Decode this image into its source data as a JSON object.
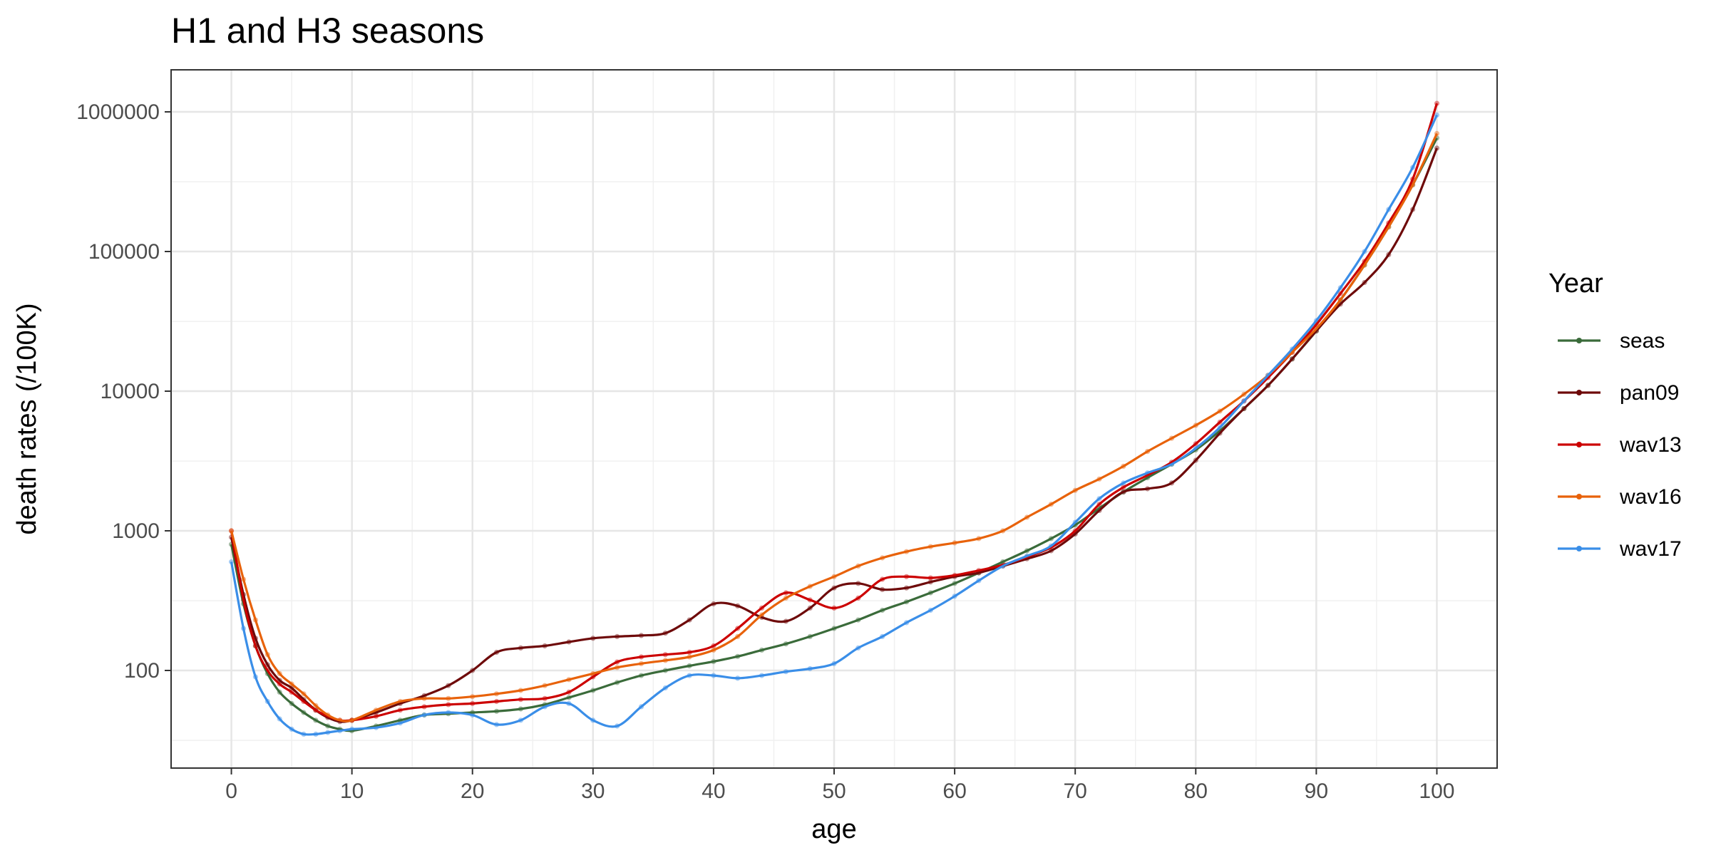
{
  "chart_data": {
    "type": "line",
    "title": "H1 and H3 seasons",
    "xlabel": "age",
    "ylabel": "death rates (/100K)",
    "xlim": [
      -5,
      105
    ],
    "ylim": [
      20,
      2000000
    ],
    "y_scale": "log10",
    "x_ticks": [
      0,
      10,
      20,
      30,
      40,
      50,
      60,
      70,
      80,
      90,
      100
    ],
    "x_tick_labels": [
      "0",
      "10",
      "20",
      "30",
      "40",
      "50",
      "60",
      "70",
      "80",
      "90",
      "100"
    ],
    "y_ticks": [
      100,
      1000,
      10000,
      100000,
      1000000
    ],
    "y_tick_labels": [
      "100",
      "1000",
      "10000",
      "100000",
      "1000000"
    ],
    "grid": true,
    "legend_title": "Year",
    "legend_position": "right",
    "series": [
      {
        "name": "seas",
        "color": "#3a6b3a",
        "x": [
          0,
          1,
          2,
          3,
          4,
          5,
          6,
          7,
          8,
          9,
          10,
          12,
          14,
          16,
          18,
          20,
          22,
          24,
          26,
          28,
          30,
          32,
          34,
          36,
          38,
          40,
          42,
          44,
          46,
          48,
          50,
          52,
          54,
          56,
          58,
          60,
          62,
          64,
          66,
          68,
          70,
          72,
          74,
          76,
          78,
          80,
          82,
          84,
          86,
          88,
          90,
          92,
          94,
          96,
          98,
          100
        ],
        "y": [
          800,
          300,
          150,
          95,
          70,
          58,
          50,
          44,
          40,
          38,
          37,
          40,
          44,
          48,
          49,
          50,
          51,
          53,
          57,
          64,
          72,
          82,
          92,
          100,
          108,
          116,
          126,
          140,
          155,
          175,
          200,
          230,
          270,
          310,
          360,
          420,
          500,
          600,
          720,
          880,
          1100,
          1450,
          1900,
          2400,
          3000,
          3800,
          5200,
          7500,
          11000,
          17000,
          27000,
          45000,
          80000,
          150000,
          300000,
          650000
        ]
      },
      {
        "name": "pan09",
        "color": "#6e0a0a",
        "x": [
          0,
          1,
          2,
          3,
          4,
          5,
          6,
          7,
          8,
          9,
          10,
          12,
          14,
          16,
          18,
          20,
          22,
          24,
          26,
          28,
          30,
          32,
          34,
          36,
          38,
          40,
          42,
          44,
          46,
          48,
          50,
          52,
          54,
          56,
          58,
          60,
          62,
          64,
          66,
          68,
          70,
          72,
          74,
          76,
          78,
          80,
          82,
          84,
          86,
          88,
          90,
          92,
          94,
          96,
          98,
          100
        ],
        "y": [
          900,
          350,
          170,
          110,
          85,
          75,
          62,
          52,
          46,
          43,
          44,
          50,
          58,
          66,
          78,
          100,
          135,
          145,
          150,
          160,
          170,
          175,
          178,
          185,
          230,
          300,
          290,
          240,
          225,
          280,
          390,
          420,
          380,
          390,
          430,
          470,
          500,
          560,
          630,
          720,
          950,
          1400,
          1900,
          2000,
          2200,
          3200,
          5000,
          7500,
          11000,
          17000,
          27000,
          42000,
          60000,
          95000,
          200000,
          550000
        ]
      },
      {
        "name": "wav13",
        "color": "#cc0000",
        "x": [
          0,
          1,
          2,
          3,
          4,
          5,
          6,
          7,
          8,
          9,
          10,
          12,
          14,
          16,
          18,
          20,
          22,
          24,
          26,
          28,
          30,
          32,
          34,
          36,
          38,
          40,
          42,
          44,
          46,
          48,
          50,
          52,
          54,
          56,
          58,
          60,
          62,
          64,
          66,
          68,
          70,
          72,
          74,
          76,
          78,
          80,
          82,
          84,
          86,
          88,
          90,
          92,
          94,
          96,
          98,
          100
        ],
        "y": [
          1000,
          320,
          150,
          100,
          80,
          70,
          60,
          52,
          47,
          44,
          44,
          47,
          52,
          55,
          57,
          58,
          60,
          62,
          63,
          70,
          90,
          115,
          125,
          130,
          135,
          150,
          200,
          280,
          360,
          320,
          280,
          330,
          450,
          470,
          460,
          480,
          520,
          570,
          650,
          760,
          1000,
          1550,
          2050,
          2500,
          3100,
          4200,
          6000,
          8500,
          12500,
          19000,
          30000,
          50000,
          85000,
          160000,
          330000,
          1150000
        ]
      },
      {
        "name": "wav16",
        "color": "#e8620a",
        "x": [
          0,
          1,
          2,
          3,
          4,
          5,
          6,
          7,
          8,
          9,
          10,
          12,
          14,
          16,
          18,
          20,
          22,
          24,
          26,
          28,
          30,
          32,
          34,
          36,
          38,
          40,
          42,
          44,
          46,
          48,
          50,
          52,
          54,
          56,
          58,
          60,
          62,
          64,
          66,
          68,
          70,
          72,
          74,
          76,
          78,
          80,
          82,
          84,
          86,
          88,
          90,
          92,
          94,
          96,
          98,
          100
        ],
        "y": [
          1000,
          450,
          230,
          130,
          95,
          80,
          68,
          56,
          48,
          44,
          44,
          52,
          60,
          63,
          63,
          65,
          68,
          72,
          78,
          86,
          95,
          105,
          112,
          118,
          125,
          140,
          175,
          250,
          330,
          400,
          470,
          560,
          640,
          710,
          770,
          820,
          880,
          1000,
          1250,
          1550,
          1950,
          2350,
          2900,
          3700,
          4600,
          5700,
          7200,
          9500,
          13000,
          19000,
          28000,
          45000,
          80000,
          150000,
          300000,
          700000
        ]
      },
      {
        "name": "wav17",
        "color": "#3a8ee8",
        "x": [
          0,
          1,
          2,
          3,
          4,
          5,
          6,
          7,
          8,
          9,
          10,
          12,
          14,
          16,
          18,
          20,
          22,
          24,
          26,
          28,
          30,
          32,
          34,
          36,
          38,
          40,
          42,
          44,
          46,
          48,
          50,
          52,
          54,
          56,
          58,
          60,
          62,
          64,
          66,
          68,
          70,
          72,
          74,
          76,
          78,
          80,
          82,
          84,
          86,
          88,
          90,
          92,
          94,
          96,
          98,
          100
        ],
        "y": [
          600,
          200,
          90,
          60,
          45,
          38,
          35,
          35,
          36,
          37,
          38,
          39,
          42,
          48,
          50,
          48,
          41,
          44,
          55,
          58,
          44,
          40,
          55,
          75,
          92,
          92,
          88,
          92,
          98,
          103,
          112,
          145,
          175,
          220,
          270,
          340,
          440,
          560,
          660,
          780,
          1150,
          1700,
          2200,
          2600,
          3000,
          3900,
          5500,
          8500,
          13000,
          20000,
          32000,
          55000,
          100000,
          200000,
          400000,
          950000
        ]
      }
    ]
  }
}
